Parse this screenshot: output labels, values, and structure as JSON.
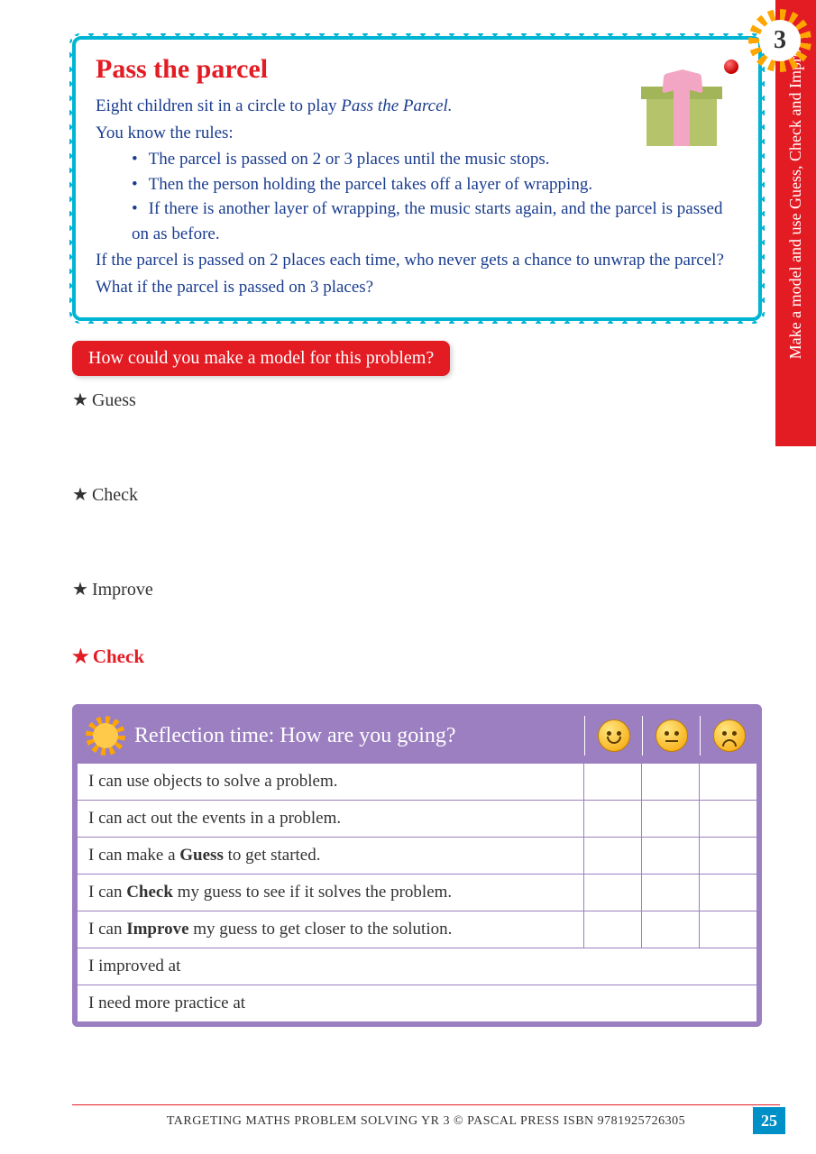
{
  "side_tab": {
    "number": "3",
    "label": "Make a model and use Guess, Check and Improve"
  },
  "parcel": {
    "title": "Pass the parcel",
    "intro": "Eight children sit in a circle to play ",
    "intro_italic": "Pass the Parcel.",
    "rules_lead": "You know the rules:",
    "bullets": [
      "The parcel is passed on 2 or 3 places until the music stops.",
      "Then the person holding the parcel takes off a layer of wrapping.",
      "If there is another layer of wrapping, the music starts again, and the parcel is passed on as before."
    ],
    "question1": "If the parcel is passed on 2 places each time, who never gets a chance to unwrap the parcel?",
    "question2": "What if the parcel is passed on 3 places?"
  },
  "prompt": "How could you make a model for this problem?",
  "steps": {
    "guess": "Guess",
    "check": "Check",
    "improve": "Improve",
    "final_check": "Check"
  },
  "reflection": {
    "title": "Reflection time: How are you going?",
    "rows": [
      {
        "text_pre": "I can use objects to solve a problem.",
        "bold": "",
        "text_post": ""
      },
      {
        "text_pre": "I can act out the events in a problem.",
        "bold": "",
        "text_post": ""
      },
      {
        "text_pre": "I can make a ",
        "bold": "Guess",
        "text_post": " to get started."
      },
      {
        "text_pre": "I can ",
        "bold": "Check",
        "text_post": " my guess to see if it solves the problem."
      },
      {
        "text_pre": "I can ",
        "bold": "Improve",
        "text_post": " my guess to get closer to the solution."
      }
    ],
    "open_rows": [
      "I improved at",
      "I need more practice at"
    ]
  },
  "footer": {
    "text": "TARGETING MATHS PROBLEM SOLVING YR 3 © PASCAL PRESS    ISBN 9781925726305",
    "page": "25"
  },
  "colors": {
    "red": "#e31b23",
    "blue_text": "#1a3d8f",
    "cyan_border": "#00b5d4",
    "purple": "#9b7fc1",
    "page_num_bg": "#0090c8",
    "sun": "#ffa500"
  }
}
